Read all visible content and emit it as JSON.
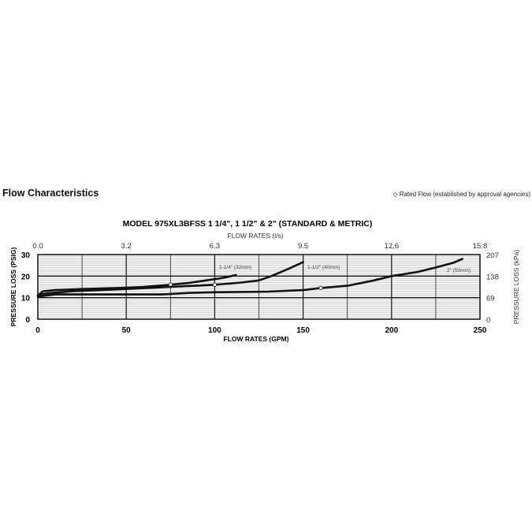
{
  "header": {
    "title": "Flow Characteristics",
    "legend_note": "◇ Rated Flow (established by approval agencies)"
  },
  "chart_data": {
    "type": "line",
    "title": "MODEL 975XL3BFSS 1 1/4\", 1 1/2\" & 2\" (STANDARD & METRIC)",
    "xlabel": "FLOW RATES (GPM)",
    "x2label": "FLOW RATES (l/s)",
    "ylabel": "PRESSURE LOSS (PSIG)",
    "y2label": "PRESSURE LOSS (kPa)",
    "xlim": [
      0,
      250
    ],
    "ylim": [
      0,
      30
    ],
    "xticks": [
      0,
      50,
      100,
      150,
      200,
      250
    ],
    "x2ticks": [
      "0.0",
      "3.2",
      "6.3",
      "9.5",
      "12.6",
      "15.8"
    ],
    "yticks": [
      0,
      10,
      20,
      30
    ],
    "y2ticks": [
      "0",
      "69",
      "138",
      "207"
    ],
    "grid": true,
    "series": [
      {
        "name": "1-1/4\" (32mm)",
        "x": [
          0,
          3,
          10,
          25,
          45,
          60,
          75,
          85,
          95,
          105,
          112
        ],
        "y": [
          11,
          13,
          13.5,
          14,
          14.5,
          15,
          16,
          16.8,
          18,
          19.2,
          20.5
        ],
        "rated": [
          75,
          16
        ]
      },
      {
        "name": "1-1/2\" (40mm)",
        "x": [
          0,
          5,
          20,
          50,
          75,
          100,
          115,
          125,
          132,
          142,
          150
        ],
        "y": [
          11,
          12,
          13,
          14,
          15,
          16,
          17,
          18,
          20,
          23.5,
          26.5
        ],
        "rated": [
          100,
          16
        ]
      },
      {
        "name": "2\" (50mm)",
        "x": [
          0,
          10,
          40,
          70,
          85,
          100,
          130,
          150,
          160,
          175,
          190,
          200,
          215,
          225,
          235,
          240
        ],
        "y": [
          10.5,
          11.5,
          11.5,
          11.5,
          12.2,
          12.5,
          12.8,
          13.5,
          14.5,
          15.5,
          18,
          20,
          22,
          24,
          26.2,
          28
        ],
        "rated": [
          160,
          14.5
        ]
      }
    ]
  }
}
